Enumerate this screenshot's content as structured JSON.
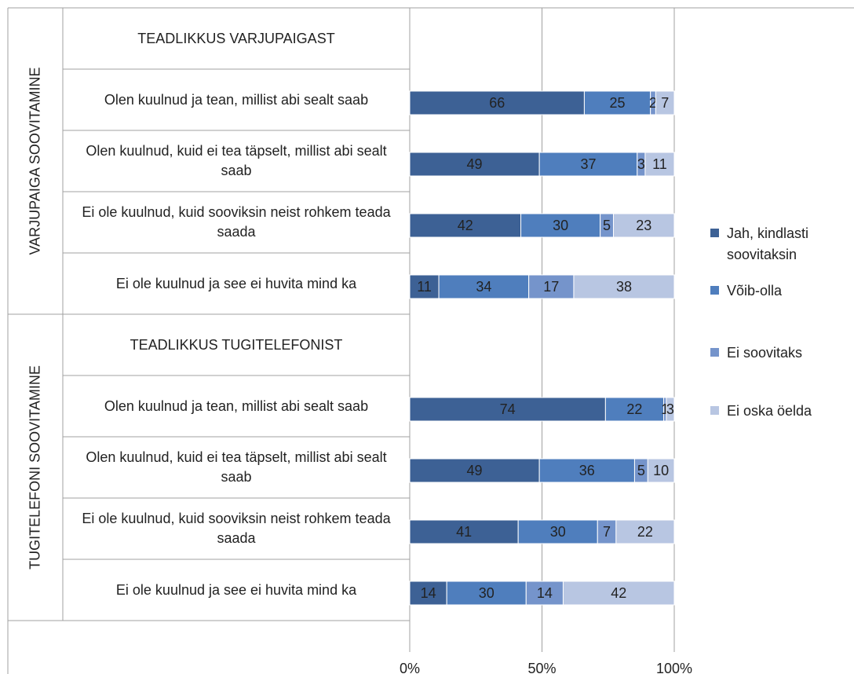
{
  "chart_data": {
    "type": "stacked_barh",
    "groups": [
      {
        "label": "VARJUPAIGA SOOVITAMINE",
        "rows": [
          0,
          4
        ]
      },
      {
        "label": "TUGITELEFONI SOOVITAMINE",
        "rows": [
          5,
          9
        ]
      }
    ],
    "categories": [
      "TEADLIKKUS VARJUPAIGAST",
      "Olen kuulnud ja tean, millist abi sealt saab",
      "Olen kuulnud, kuid ei tea täpselt, millist abi sealt saab",
      "Ei ole kuulnud, kuid sooviksin neist rohkem teada saada",
      "Ei ole kuulnud ja see ei huvita mind ka",
      "TEADLIKKUS TUGITELEFONIST",
      "Olen kuulnud ja tean, millist abi sealt saab",
      "Olen kuulnud, kuid ei tea täpselt, millist abi sealt saab",
      "Ei ole kuulnud, kuid sooviksin neist rohkem teada saada",
      "Ei ole kuulnud ja see ei huvita mind ka"
    ],
    "series": [
      {
        "name": "Jah, kindlasti soovitaksin",
        "color": "#3d6195",
        "values": [
          null,
          66,
          49,
          42,
          11,
          null,
          74,
          49,
          41,
          14
        ]
      },
      {
        "name": "Võib-olla",
        "color": "#4f7ebd",
        "values": [
          null,
          25,
          37,
          30,
          34,
          null,
          22,
          36,
          30,
          30
        ]
      },
      {
        "name": "Ei soovitaks",
        "color": "#7594cb",
        "values": [
          null,
          2,
          3,
          5,
          17,
          null,
          1,
          5,
          7,
          14
        ]
      },
      {
        "name": "Ei oska öelda",
        "color": "#b8c6e2",
        "values": [
          null,
          7,
          11,
          23,
          38,
          null,
          3,
          10,
          22,
          42
        ]
      }
    ],
    "xlim": [
      0,
      100
    ],
    "xticks": [
      {
        "value": 0,
        "label": "0%"
      },
      {
        "value": 50,
        "label": "50%"
      },
      {
        "value": 100,
        "label": "100%"
      }
    ],
    "grid": true,
    "legend": "right"
  }
}
